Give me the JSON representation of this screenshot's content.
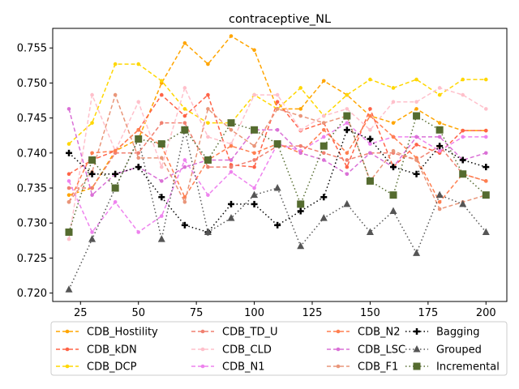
{
  "chart_data": {
    "type": "line",
    "title": "contraceptive_NL",
    "xlabel": "",
    "ylabel": "",
    "xlim": [
      13,
      209
    ],
    "ylim": [
      0.7188,
      0.7578
    ],
    "xticks": [
      25,
      50,
      75,
      100,
      125,
      150,
      175,
      200
    ],
    "yticks": [
      0.72,
      0.725,
      0.73,
      0.735,
      0.74,
      0.745,
      0.75,
      0.755
    ],
    "ytick_labels": [
      "0.720",
      "0.725",
      "0.730",
      "0.735",
      "0.740",
      "0.745",
      "0.750",
      "0.755"
    ],
    "grid": false,
    "legend_position": "bottom",
    "x": [
      20,
      30,
      40,
      50,
      60,
      70,
      80,
      90,
      100,
      110,
      120,
      130,
      140,
      150,
      160,
      170,
      180,
      190,
      200
    ],
    "series": [
      {
        "name": "CDB_Hostility",
        "color": "#FFA500",
        "style": "dashed",
        "marker": "dot",
        "values": [
          0.734,
          0.735,
          0.7403,
          0.742,
          0.75,
          0.7557,
          0.7527,
          0.7567,
          0.7547,
          0.7463,
          0.7463,
          0.7503,
          0.7483,
          0.7453,
          0.7443,
          0.7463,
          0.7443,
          0.7432,
          0.7432
        ]
      },
      {
        "name": "CDB_kDN",
        "color": "#FF6347",
        "style": "dashed",
        "marker": "dot",
        "values": [
          0.737,
          0.739,
          0.7403,
          0.7433,
          0.7483,
          0.7453,
          0.7483,
          0.7383,
          0.738,
          0.7473,
          0.7432,
          0.7443,
          0.738,
          0.7463,
          0.738,
          0.7412,
          0.74,
          0.7432,
          0.7432
        ]
      },
      {
        "name": "CDB_DCP",
        "color": "#FFD700",
        "style": "dashed",
        "marker": "dot",
        "values": [
          0.7413,
          0.7443,
          0.7527,
          0.7527,
          0.7503,
          0.7463,
          0.7443,
          0.7443,
          0.7483,
          0.7463,
          0.7493,
          0.7453,
          0.7483,
          0.7505,
          0.7493,
          0.7505,
          0.7483,
          0.7505,
          0.7505
        ]
      },
      {
        "name": "CDB_TD_U",
        "color": "#F08070",
        "style": "dashed",
        "marker": "dot",
        "values": [
          0.735,
          0.735,
          0.74,
          0.74,
          0.7443,
          0.7443,
          0.738,
          0.738,
          0.739,
          0.741,
          0.741,
          0.74,
          0.739,
          0.74,
          0.74,
          0.739,
          0.741,
          0.737,
          0.736
        ]
      },
      {
        "name": "CDB_CLD",
        "color": "#FFC0CB",
        "style": "dashed",
        "marker": "dot",
        "values": [
          0.7277,
          0.7483,
          0.7403,
          0.7473,
          0.738,
          0.7493,
          0.7423,
          0.7413,
          0.7483,
          0.7483,
          0.7433,
          0.7453,
          0.7463,
          0.7433,
          0.7473,
          0.7473,
          0.7493,
          0.7483,
          0.7463
        ]
      },
      {
        "name": "CDB_N1",
        "color": "#EE82EE",
        "style": "dashed",
        "marker": "dot",
        "values": [
          0.736,
          0.7287,
          0.733,
          0.7287,
          0.731,
          0.739,
          0.734,
          0.7373,
          0.735,
          0.7413,
          0.7403,
          0.7423,
          0.7443,
          0.7413,
          0.7423,
          0.7423,
          0.7403,
          0.7423,
          0.7423
        ]
      },
      {
        "name": "CDB_N2",
        "color": "#FF7F50",
        "style": "dashed",
        "marker": "dot",
        "values": [
          0.733,
          0.74,
          0.7403,
          0.7433,
          0.741,
          0.7337,
          0.739,
          0.741,
          0.74,
          0.7413,
          0.74,
          0.7433,
          0.74,
          0.7453,
          0.7423,
          0.7393,
          0.733,
          0.737,
          0.736
        ]
      },
      {
        "name": "CDB_LSC",
        "color": "#DA70D6",
        "style": "dashed",
        "marker": "dot",
        "values": [
          0.7463,
          0.734,
          0.737,
          0.738,
          0.736,
          0.738,
          0.739,
          0.739,
          0.7433,
          0.7433,
          0.74,
          0.739,
          0.737,
          0.74,
          0.738,
          0.7423,
          0.7423,
          0.739,
          0.74
        ]
      },
      {
        "name": "CDB_F1",
        "color": "#E9967A",
        "style": "dashed",
        "marker": "dot",
        "values": [
          0.733,
          0.7373,
          0.7483,
          0.7393,
          0.7393,
          0.733,
          0.7463,
          0.7433,
          0.741,
          0.7463,
          0.7453,
          0.7443,
          0.7453,
          0.736,
          0.7403,
          0.739,
          0.732,
          0.733,
          0.734
        ]
      },
      {
        "name": "Bagging",
        "color": "#000000",
        "style": "dotted",
        "marker": "plus",
        "values": [
          0.74,
          0.737,
          0.737,
          0.738,
          0.7337,
          0.7297,
          0.7287,
          0.7327,
          0.7327,
          0.7297,
          0.7317,
          0.7337,
          0.7433,
          0.742,
          0.738,
          0.737,
          0.741,
          0.739,
          0.738
        ]
      },
      {
        "name": "Grouped",
        "color": "#555555",
        "style": "dotted",
        "marker": "triangle",
        "values": [
          0.7205,
          0.7277,
          0.735,
          0.742,
          0.7277,
          0.7433,
          0.7287,
          0.7307,
          0.734,
          0.735,
          0.7267,
          0.7307,
          0.7327,
          0.7287,
          0.7317,
          0.7257,
          0.734,
          0.7327,
          0.7287
        ]
      },
      {
        "name": "Incremental",
        "color": "#556B2F",
        "style": "dotted",
        "marker": "square",
        "values": [
          0.7287,
          0.739,
          0.735,
          0.742,
          0.7413,
          0.7433,
          0.739,
          0.7443,
          0.7433,
          0.7413,
          0.7327,
          0.741,
          0.7453,
          0.736,
          0.734,
          0.7453,
          0.7433,
          0.737,
          0.734
        ]
      }
    ]
  }
}
